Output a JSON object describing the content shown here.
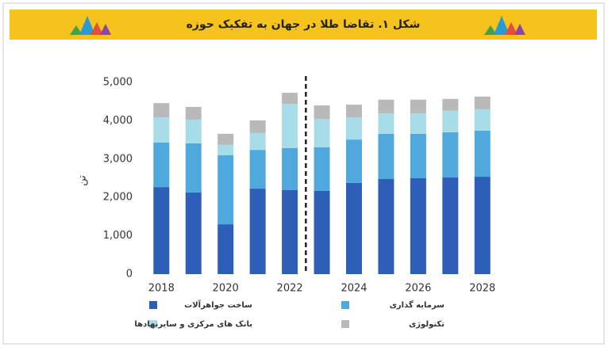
{
  "chart_data": {
    "type": "stacked_bar",
    "title": "شکل ۱. تقاضا طلا در جهان به تفکیک حوزه",
    "y_label": "تن",
    "x": [
      2018,
      2019,
      2020,
      2021,
      2022,
      2023,
      2024,
      2025,
      2026,
      2027,
      2028
    ],
    "xlim": [
      2017.3,
      2028.5
    ],
    "xticks": [
      2018,
      2020,
      2022,
      2024,
      2026,
      2028
    ],
    "ylim": [
      0,
      5000
    ],
    "yticks": [
      0,
      {
        "value": 1000,
        "label": "1,000"
      },
      {
        "value": 2000,
        "label": "2,000"
      },
      {
        "value": 3000,
        "label": "3,000"
      },
      {
        "value": 4000,
        "label": "4,000"
      },
      {
        "value": 5000,
        "label": "5,000"
      }
    ],
    "grid": false,
    "forecast_line": 2022.5,
    "legend": "bottom",
    "series": [
      {
        "name": "ساخت جواهرآلات",
        "color": "#2e5fb8",
        "values": [
          2270,
          2130,
          1300,
          2230,
          2190,
          2170,
          2380,
          2480,
          2500,
          2520,
          2540
        ]
      },
      {
        "name": "سرمایه گذاری",
        "color": "#4fa9dc",
        "values": [
          1160,
          1280,
          1800,
          1010,
          1100,
          1140,
          1130,
          1180,
          1160,
          1180,
          1200
        ]
      },
      {
        "name": "بانک های مرکزی و سایرنهادها",
        "color": "#a6dde9",
        "values": [
          660,
          620,
          270,
          440,
          1150,
          740,
          580,
          530,
          530,
          560,
          560
        ]
      },
      {
        "name": "تکنولوژی",
        "color": "#b9b9b9",
        "values": [
          370,
          330,
          290,
          330,
          290,
          350,
          330,
          360,
          360,
          310,
          330
        ]
      }
    ]
  }
}
